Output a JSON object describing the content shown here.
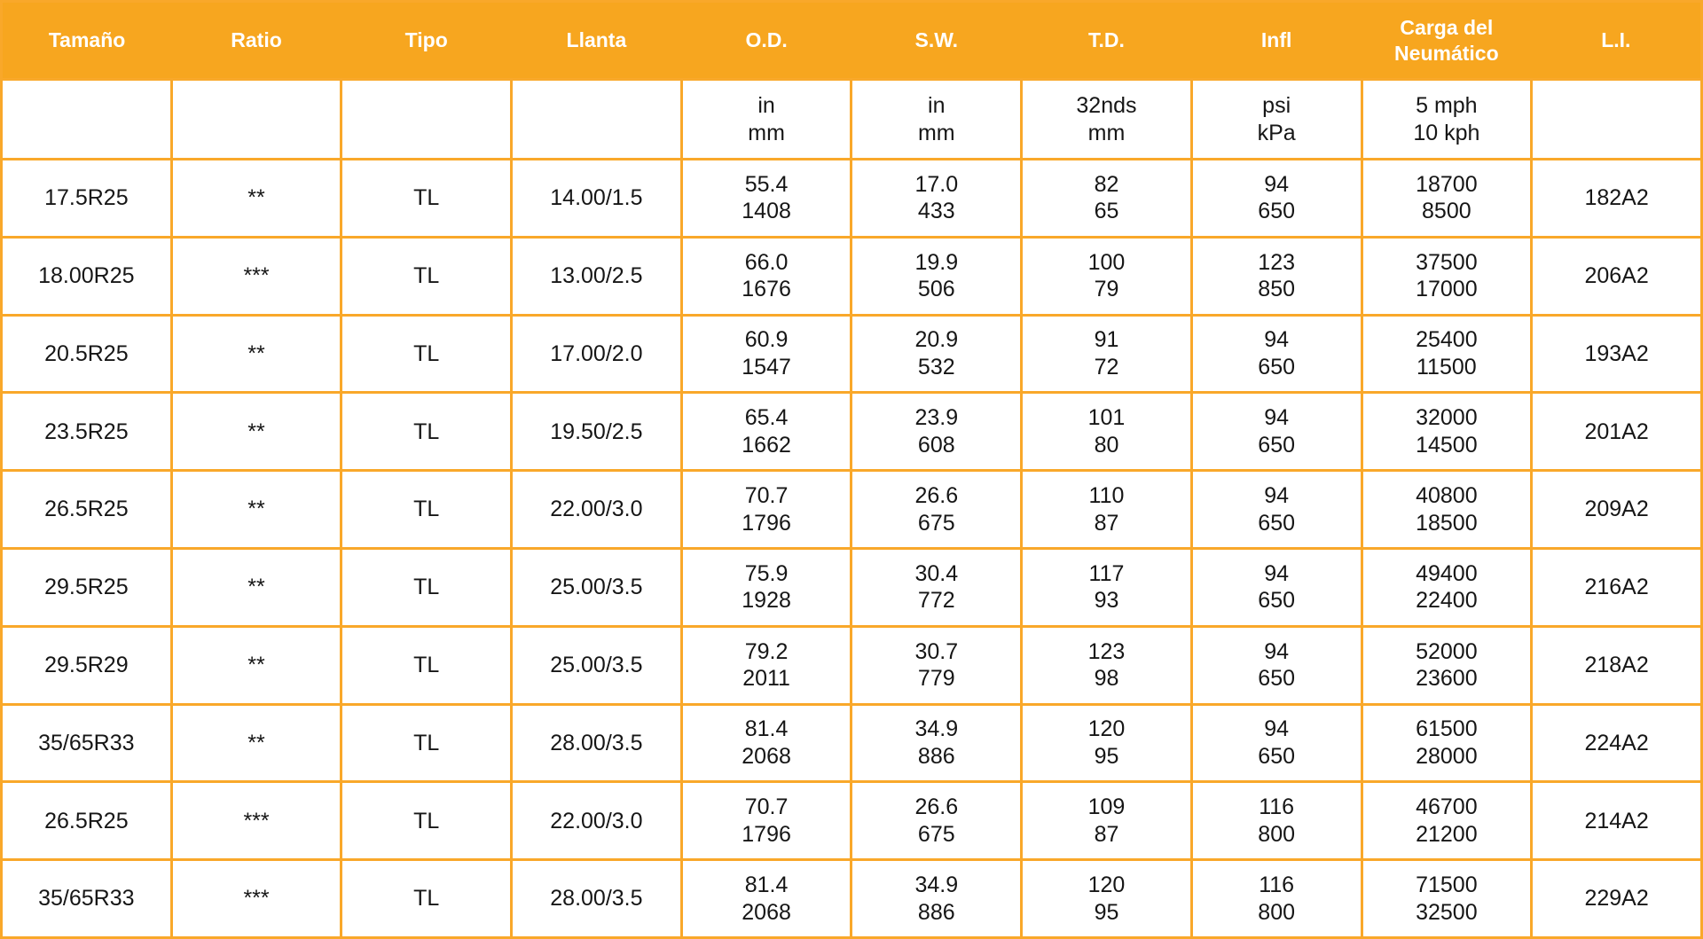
{
  "colors": {
    "header_bg": "#F7A61F",
    "border": "#F9A82A",
    "header_text": "#FFFFFF",
    "body_text": "#161616",
    "cell_bg": "#FFFFFF"
  },
  "table": {
    "columns": [
      "Tamaño",
      "Ratio",
      "Tipo",
      "Llanta",
      "O.D.",
      "S.W.",
      "T.D.",
      "Infl",
      "Carga del\nNeumático",
      "L.I."
    ],
    "units": [
      "",
      "",
      "",
      "",
      "in\nmm",
      "in\nmm",
      "32nds\nmm",
      "psi\nkPa",
      "5 mph\n10 kph",
      ""
    ],
    "rows": [
      [
        "17.5R25",
        "**",
        "TL",
        "14.00/1.5",
        "55.4\n1408",
        "17.0\n433",
        "82\n65",
        "94\n650",
        "18700\n8500",
        "182A2"
      ],
      [
        "18.00R25",
        "***",
        "TL",
        "13.00/2.5",
        "66.0\n1676",
        "19.9\n506",
        "100\n79",
        "123\n850",
        "37500\n17000",
        "206A2"
      ],
      [
        "20.5R25",
        "**",
        "TL",
        "17.00/2.0",
        "60.9\n1547",
        "20.9\n532",
        "91\n72",
        "94\n650",
        "25400\n11500",
        "193A2"
      ],
      [
        "23.5R25",
        "**",
        "TL",
        "19.50/2.5",
        "65.4\n1662",
        "23.9\n608",
        "101\n80",
        "94\n650",
        "32000\n14500",
        "201A2"
      ],
      [
        "26.5R25",
        "**",
        "TL",
        "22.00/3.0",
        "70.7\n1796",
        "26.6\n675",
        "110\n87",
        "94\n650",
        "40800\n18500",
        "209A2"
      ],
      [
        "29.5R25",
        "**",
        "TL",
        "25.00/3.5",
        "75.9\n1928",
        "30.4\n772",
        "117\n93",
        "94\n650",
        "49400\n22400",
        "216A2"
      ],
      [
        "29.5R29",
        "**",
        "TL",
        "25.00/3.5",
        "79.2\n2011",
        "30.7\n779",
        "123\n98",
        "94\n650",
        "52000\n23600",
        "218A2"
      ],
      [
        "35/65R33",
        "**",
        "TL",
        "28.00/3.5",
        "81.4\n2068",
        "34.9\n886",
        "120\n95",
        "94\n650",
        "61500\n28000",
        "224A2"
      ],
      [
        "26.5R25",
        "***",
        "TL",
        "22.00/3.0",
        "70.7\n1796",
        "26.6\n675",
        "109\n87",
        "116\n800",
        "46700\n21200",
        "214A2"
      ],
      [
        "35/65R33",
        "***",
        "TL",
        "28.00/3.5",
        "81.4\n2068",
        "34.9\n886",
        "120\n95",
        "116\n800",
        "71500\n32500",
        "229A2"
      ]
    ]
  }
}
